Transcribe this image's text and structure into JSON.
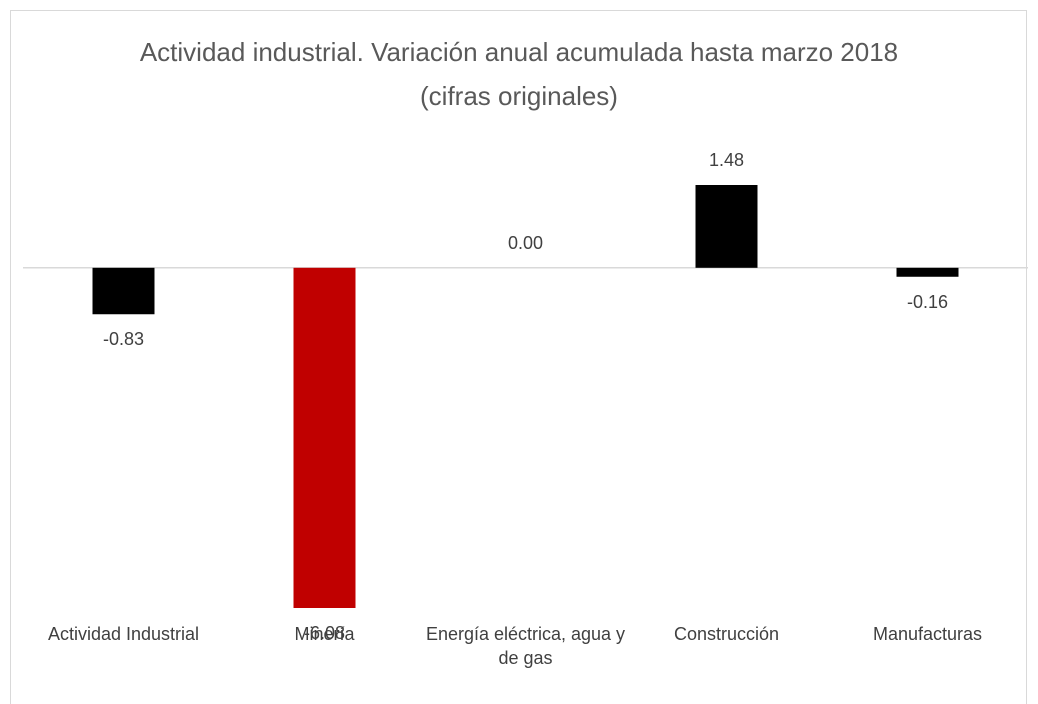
{
  "chart_data": {
    "type": "bar",
    "title": "Actividad industrial. Variación anual acumulada hasta marzo 2018 (cifras originales)",
    "categories": [
      "Actividad Industrial",
      "Minería",
      "Energía eléctrica, agua y de gas",
      "Construcción",
      "Manufacturas"
    ],
    "values": [
      -0.83,
      -6.08,
      0,
      1.48,
      -0.16
    ],
    "value_labels": [
      "-0.83",
      "-6.08",
      "0.00",
      "1.48",
      "-0.16"
    ],
    "colors": [
      "#000000",
      "#c00000",
      "#000000",
      "#000000",
      "#000000"
    ]
  }
}
